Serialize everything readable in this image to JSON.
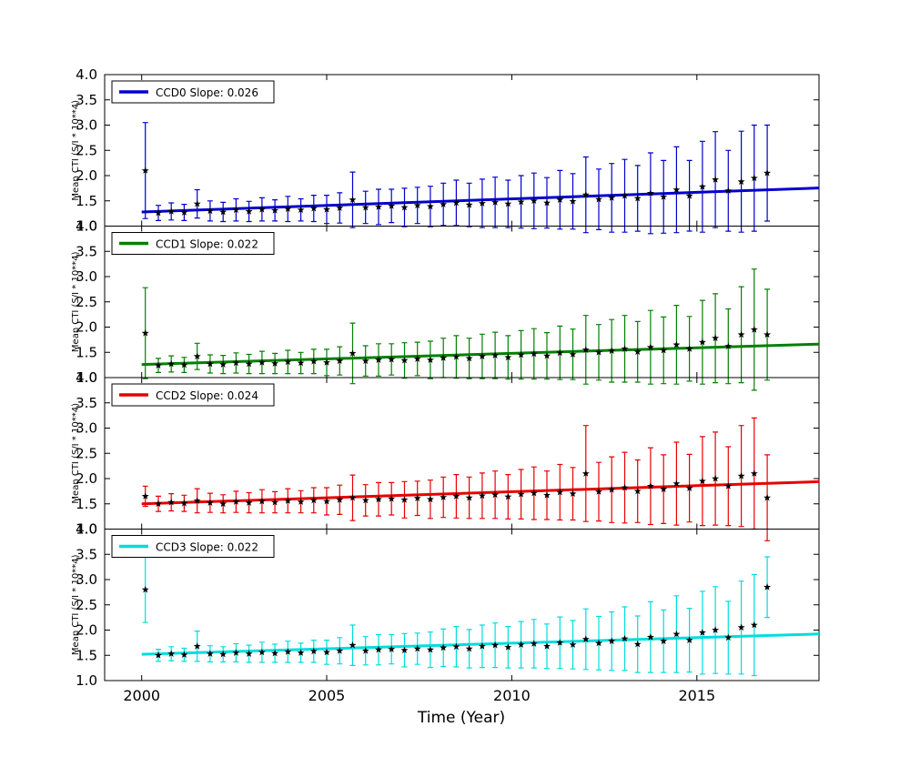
{
  "xlabel": "Time (Year)",
  "ylabel": "Mean CTI (S/I * 10**4)",
  "axis": {
    "xlim": [
      1999.0,
      2018.3
    ],
    "ylim": [
      1.0,
      4.0
    ],
    "x_ticks": [
      2000,
      2005,
      2010,
      2015
    ],
    "y_ticks": [
      1.0,
      1.5,
      2.0,
      2.5,
      3.0,
      3.5,
      4.0
    ]
  },
  "chart_data": [
    {
      "type": "scatter",
      "name": "CCD0",
      "legend_label": "CCD0 Slope: 0.026",
      "color": "#0000cc",
      "marker_color": "#000000",
      "fit": {
        "slope": 0.026,
        "intercept_2000": 1.28,
        "x_start": 2000.0,
        "x_end": 2018.3
      },
      "points": [
        [
          2000.1,
          2.1,
          0.95
        ],
        [
          2000.45,
          1.26,
          0.15
        ],
        [
          2000.8,
          1.29,
          0.17
        ],
        [
          2001.15,
          1.27,
          0.16
        ],
        [
          2001.5,
          1.44,
          0.28
        ],
        [
          2001.85,
          1.3,
          0.2
        ],
        [
          2002.2,
          1.28,
          0.19
        ],
        [
          2002.55,
          1.32,
          0.22
        ],
        [
          2002.9,
          1.29,
          0.2
        ],
        [
          2003.25,
          1.33,
          0.23
        ],
        [
          2003.6,
          1.31,
          0.21
        ],
        [
          2003.95,
          1.34,
          0.25
        ],
        [
          2004.3,
          1.32,
          0.22
        ],
        [
          2004.65,
          1.35,
          0.26
        ],
        [
          2005.0,
          1.33,
          0.28
        ],
        [
          2005.35,
          1.36,
          0.3
        ],
        [
          2005.7,
          1.52,
          0.55
        ],
        [
          2006.05,
          1.37,
          0.32
        ],
        [
          2006.4,
          1.38,
          0.35
        ],
        [
          2006.75,
          1.4,
          0.33
        ],
        [
          2007.1,
          1.37,
          0.38
        ],
        [
          2007.45,
          1.41,
          0.36
        ],
        [
          2007.8,
          1.39,
          0.4
        ],
        [
          2008.15,
          1.43,
          0.42
        ],
        [
          2008.5,
          1.46,
          0.45
        ],
        [
          2008.85,
          1.42,
          0.43
        ],
        [
          2009.2,
          1.45,
          0.48
        ],
        [
          2009.55,
          1.47,
          0.5
        ],
        [
          2009.9,
          1.44,
          0.47
        ],
        [
          2010.25,
          1.48,
          0.52
        ],
        [
          2010.6,
          1.5,
          0.55
        ],
        [
          2010.95,
          1.46,
          0.5
        ],
        [
          2011.3,
          1.52,
          0.58
        ],
        [
          2011.65,
          1.49,
          0.55
        ],
        [
          2012.0,
          1.62,
          0.75
        ],
        [
          2012.35,
          1.53,
          0.6
        ],
        [
          2012.7,
          1.56,
          0.68
        ],
        [
          2013.05,
          1.6,
          0.72
        ],
        [
          2013.4,
          1.55,
          0.65
        ],
        [
          2013.75,
          1.65,
          0.8
        ],
        [
          2014.1,
          1.58,
          0.72
        ],
        [
          2014.45,
          1.72,
          0.85
        ],
        [
          2014.8,
          1.6,
          0.7
        ],
        [
          2015.15,
          1.78,
          0.9
        ],
        [
          2015.5,
          1.92,
          0.95
        ],
        [
          2015.85,
          1.7,
          0.8
        ],
        [
          2016.2,
          1.88,
          1.0
        ],
        [
          2016.55,
          1.95,
          1.05
        ],
        [
          2016.9,
          2.05,
          0.95
        ]
      ]
    },
    {
      "type": "scatter",
      "name": "CCD1",
      "legend_label": "CCD1 Slope: 0.022",
      "color": "#008000",
      "marker_color": "#000000",
      "fit": {
        "slope": 0.022,
        "intercept_2000": 1.26,
        "x_start": 2000.0,
        "x_end": 2018.3
      },
      "points": [
        [
          2000.1,
          1.88,
          0.9
        ],
        [
          2000.45,
          1.24,
          0.14
        ],
        [
          2000.8,
          1.27,
          0.16
        ],
        [
          2001.15,
          1.25,
          0.15
        ],
        [
          2001.5,
          1.42,
          0.26
        ],
        [
          2001.85,
          1.27,
          0.18
        ],
        [
          2002.2,
          1.26,
          0.18
        ],
        [
          2002.55,
          1.29,
          0.2
        ],
        [
          2002.9,
          1.27,
          0.19
        ],
        [
          2003.25,
          1.3,
          0.22
        ],
        [
          2003.6,
          1.28,
          0.2
        ],
        [
          2003.95,
          1.31,
          0.23
        ],
        [
          2004.3,
          1.29,
          0.21
        ],
        [
          2004.65,
          1.32,
          0.24
        ],
        [
          2005.0,
          1.3,
          0.26
        ],
        [
          2005.35,
          1.33,
          0.28
        ],
        [
          2005.7,
          1.48,
          0.6
        ],
        [
          2006.05,
          1.33,
          0.3
        ],
        [
          2006.4,
          1.35,
          0.32
        ],
        [
          2006.75,
          1.36,
          0.31
        ],
        [
          2007.1,
          1.34,
          0.35
        ],
        [
          2007.45,
          1.37,
          0.33
        ],
        [
          2007.8,
          1.35,
          0.37
        ],
        [
          2008.15,
          1.39,
          0.39
        ],
        [
          2008.5,
          1.41,
          0.42
        ],
        [
          2008.85,
          1.38,
          0.4
        ],
        [
          2009.2,
          1.42,
          0.44
        ],
        [
          2009.55,
          1.44,
          0.46
        ],
        [
          2009.9,
          1.4,
          0.43
        ],
        [
          2010.25,
          1.45,
          0.48
        ],
        [
          2010.6,
          1.47,
          0.5
        ],
        [
          2010.95,
          1.43,
          0.46
        ],
        [
          2011.3,
          1.49,
          0.53
        ],
        [
          2011.65,
          1.46,
          0.5
        ],
        [
          2012.0,
          1.55,
          0.68
        ],
        [
          2012.35,
          1.5,
          0.55
        ],
        [
          2012.7,
          1.53,
          0.62
        ],
        [
          2013.05,
          1.57,
          0.66
        ],
        [
          2013.4,
          1.51,
          0.6
        ],
        [
          2013.75,
          1.6,
          0.73
        ],
        [
          2014.1,
          1.54,
          0.66
        ],
        [
          2014.45,
          1.65,
          0.78
        ],
        [
          2014.8,
          1.57,
          0.64
        ],
        [
          2015.15,
          1.7,
          0.83
        ],
        [
          2015.5,
          1.78,
          0.88
        ],
        [
          2015.85,
          1.62,
          0.74
        ],
        [
          2016.2,
          1.85,
          0.95
        ],
        [
          2016.55,
          1.95,
          1.2
        ],
        [
          2016.9,
          1.85,
          0.9
        ]
      ]
    },
    {
      "type": "scatter",
      "name": "CCD2",
      "legend_label": "CCD2 Slope: 0.024",
      "color": "#e60000",
      "marker_color": "#000000",
      "fit": {
        "slope": 0.024,
        "intercept_2000": 1.5,
        "x_start": 2000.0,
        "x_end": 2018.3
      },
      "points": [
        [
          2000.1,
          1.65,
          0.2
        ],
        [
          2000.45,
          1.5,
          0.15
        ],
        [
          2000.8,
          1.53,
          0.17
        ],
        [
          2001.15,
          1.51,
          0.16
        ],
        [
          2001.5,
          1.56,
          0.24
        ],
        [
          2001.85,
          1.52,
          0.19
        ],
        [
          2002.2,
          1.5,
          0.18
        ],
        [
          2002.55,
          1.54,
          0.21
        ],
        [
          2002.9,
          1.52,
          0.2
        ],
        [
          2003.25,
          1.55,
          0.23
        ],
        [
          2003.6,
          1.53,
          0.21
        ],
        [
          2003.95,
          1.56,
          0.24
        ],
        [
          2004.3,
          1.54,
          0.22
        ],
        [
          2004.65,
          1.57,
          0.25
        ],
        [
          2005.0,
          1.55,
          0.27
        ],
        [
          2005.35,
          1.58,
          0.29
        ],
        [
          2005.7,
          1.62,
          0.45
        ],
        [
          2006.05,
          1.57,
          0.31
        ],
        [
          2006.4,
          1.59,
          0.33
        ],
        [
          2006.75,
          1.6,
          0.32
        ],
        [
          2007.1,
          1.58,
          0.36
        ],
        [
          2007.45,
          1.61,
          0.34
        ],
        [
          2007.8,
          1.59,
          0.38
        ],
        [
          2008.15,
          1.63,
          0.4
        ],
        [
          2008.5,
          1.65,
          0.43
        ],
        [
          2008.85,
          1.62,
          0.41
        ],
        [
          2009.2,
          1.66,
          0.45
        ],
        [
          2009.55,
          1.68,
          0.47
        ],
        [
          2009.9,
          1.64,
          0.44
        ],
        [
          2010.25,
          1.69,
          0.49
        ],
        [
          2010.6,
          1.71,
          0.52
        ],
        [
          2010.95,
          1.67,
          0.48
        ],
        [
          2011.3,
          1.73,
          0.55
        ],
        [
          2011.65,
          1.7,
          0.52
        ],
        [
          2012.0,
          2.1,
          0.95
        ],
        [
          2012.35,
          1.74,
          0.58
        ],
        [
          2012.7,
          1.78,
          0.65
        ],
        [
          2013.05,
          1.82,
          0.7
        ],
        [
          2013.4,
          1.75,
          0.62
        ],
        [
          2013.75,
          1.85,
          0.76
        ],
        [
          2014.1,
          1.79,
          0.68
        ],
        [
          2014.45,
          1.9,
          0.82
        ],
        [
          2014.8,
          1.81,
          0.67
        ],
        [
          2015.15,
          1.95,
          0.88
        ],
        [
          2015.5,
          2.0,
          0.92
        ],
        [
          2015.85,
          1.85,
          0.78
        ],
        [
          2016.2,
          2.05,
          1.0
        ],
        [
          2016.55,
          2.1,
          1.1
        ],
        [
          2016.9,
          1.62,
          0.85
        ]
      ]
    },
    {
      "type": "scatter",
      "name": "CCD3",
      "legend_label": "CCD3 Slope: 0.022",
      "color": "#00dddd",
      "marker_color": "#000000",
      "fit": {
        "slope": 0.022,
        "intercept_2000": 1.52,
        "x_start": 2000.0,
        "x_end": 2018.3
      },
      "points": [
        [
          2000.1,
          2.8,
          0.65
        ],
        [
          2000.45,
          1.5,
          0.12
        ],
        [
          2000.8,
          1.53,
          0.14
        ],
        [
          2001.15,
          1.51,
          0.13
        ],
        [
          2001.5,
          1.68,
          0.3
        ],
        [
          2001.85,
          1.53,
          0.16
        ],
        [
          2002.2,
          1.52,
          0.15
        ],
        [
          2002.55,
          1.55,
          0.18
        ],
        [
          2002.9,
          1.53,
          0.17
        ],
        [
          2003.25,
          1.56,
          0.2
        ],
        [
          2003.6,
          1.54,
          0.18
        ],
        [
          2003.95,
          1.57,
          0.21
        ],
        [
          2004.3,
          1.55,
          0.19
        ],
        [
          2004.65,
          1.58,
          0.22
        ],
        [
          2005.0,
          1.56,
          0.24
        ],
        [
          2005.35,
          1.59,
          0.26
        ],
        [
          2005.7,
          1.7,
          0.4
        ],
        [
          2006.05,
          1.59,
          0.28
        ],
        [
          2006.4,
          1.61,
          0.3
        ],
        [
          2006.75,
          1.62,
          0.29
        ],
        [
          2007.1,
          1.6,
          0.33
        ],
        [
          2007.45,
          1.63,
          0.31
        ],
        [
          2007.8,
          1.61,
          0.35
        ],
        [
          2008.15,
          1.65,
          0.37
        ],
        [
          2008.5,
          1.67,
          0.4
        ],
        [
          2008.85,
          1.63,
          0.38
        ],
        [
          2009.2,
          1.68,
          0.42
        ],
        [
          2009.55,
          1.7,
          0.44
        ],
        [
          2009.9,
          1.66,
          0.41
        ],
        [
          2010.25,
          1.71,
          0.46
        ],
        [
          2010.6,
          1.73,
          0.48
        ],
        [
          2010.95,
          1.68,
          0.44
        ],
        [
          2011.3,
          1.75,
          0.51
        ],
        [
          2011.65,
          1.71,
          0.48
        ],
        [
          2012.0,
          1.82,
          0.6
        ],
        [
          2012.35,
          1.74,
          0.53
        ],
        [
          2012.7,
          1.78,
          0.58
        ],
        [
          2013.05,
          1.83,
          0.63
        ],
        [
          2013.4,
          1.72,
          0.56
        ],
        [
          2013.75,
          1.86,
          0.7
        ],
        [
          2014.1,
          1.78,
          0.62
        ],
        [
          2014.45,
          1.92,
          0.76
        ],
        [
          2014.8,
          1.8,
          0.63
        ],
        [
          2015.15,
          1.95,
          0.82
        ],
        [
          2015.5,
          2.0,
          0.86
        ],
        [
          2015.85,
          1.85,
          0.72
        ],
        [
          2016.2,
          2.05,
          0.92
        ],
        [
          2016.55,
          2.1,
          1.0
        ],
        [
          2016.9,
          2.85,
          0.6
        ]
      ]
    }
  ]
}
